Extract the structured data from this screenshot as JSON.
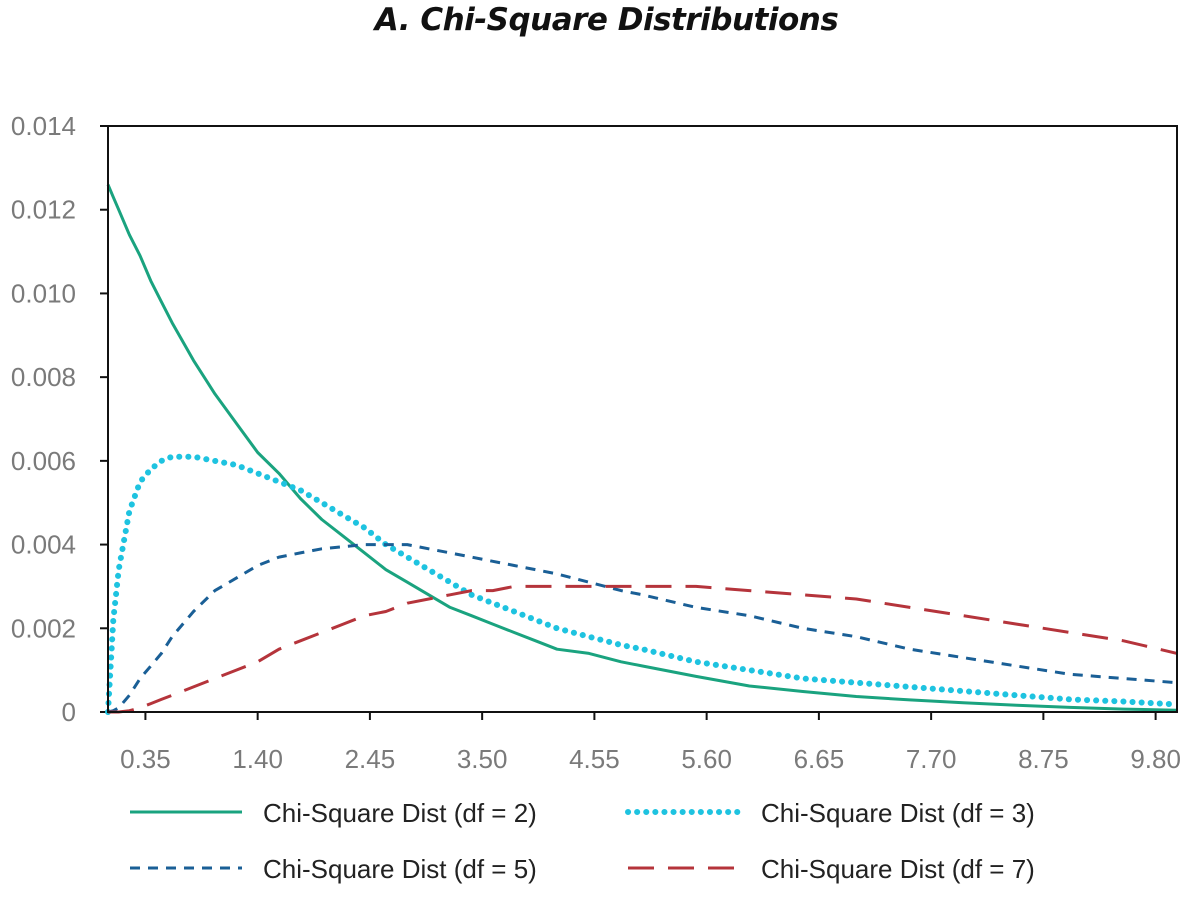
{
  "chart_data": {
    "type": "line",
    "title": "A. Chi-Square Distributions",
    "xlabel": "",
    "ylabel": "",
    "xlim": [
      0.0,
      10.0
    ],
    "ylim": [
      0,
      0.014
    ],
    "x_ticks": [
      "0.35",
      "1.40",
      "2.45",
      "3.50",
      "4.55",
      "5.60",
      "6.65",
      "7.70",
      "8.75",
      "9.80"
    ],
    "y_ticks": [
      "0",
      "0.002",
      "0.004",
      "0.006",
      "0.008",
      "0.010",
      "0.012",
      "0.014"
    ],
    "grid": false,
    "legend_position": "bottom",
    "x": [
      0.0,
      0.05,
      0.1,
      0.2,
      0.3,
      0.4,
      0.5,
      0.6,
      0.8,
      1.0,
      1.2,
      1.4,
      1.6,
      1.8,
      2.0,
      2.2,
      2.4,
      2.6,
      2.8,
      3.0,
      3.2,
      3.4,
      3.6,
      3.8,
      4.0,
      4.2,
      4.5,
      4.8,
      5.0,
      5.5,
      6.0,
      6.5,
      7.0,
      7.5,
      8.0,
      8.5,
      9.0,
      9.5,
      10.0
    ],
    "series": [
      {
        "name": "Chi-Square Dist (df = 2)",
        "color": "#1aa37f",
        "style": "solid",
        "values": [
          0.0126,
          0.0123,
          0.012,
          0.0114,
          0.0109,
          0.0103,
          0.0098,
          0.0093,
          0.0084,
          0.0076,
          0.0069,
          0.0062,
          0.0057,
          0.0051,
          0.0046,
          0.0042,
          0.0038,
          0.0034,
          0.0031,
          0.0028,
          0.0025,
          0.0023,
          0.0021,
          0.0019,
          0.0017,
          0.0015,
          0.0014,
          0.0012,
          0.0011,
          0.00085,
          0.00062,
          0.00049,
          0.00037,
          0.00029,
          0.00022,
          0.00016,
          0.00011,
          7e-05,
          4e-05
        ]
      },
      {
        "name": "Chi-Square Dist (df = 3)",
        "color": "#1ec3e0",
        "style": "dotted",
        "values": [
          0.0,
          0.0022,
          0.0034,
          0.0048,
          0.0055,
          0.0058,
          0.006,
          0.0061,
          0.0061,
          0.006,
          0.0059,
          0.0057,
          0.0055,
          0.0053,
          0.005,
          0.0047,
          0.0044,
          0.004,
          0.0037,
          0.0034,
          0.0031,
          0.0028,
          0.0026,
          0.0024,
          0.0022,
          0.002,
          0.0018,
          0.0016,
          0.0015,
          0.0012,
          0.001,
          0.0008,
          0.0007,
          0.0006,
          0.0005,
          0.0004,
          0.0003,
          0.00025,
          0.00018
        ]
      },
      {
        "name": "Chi-Square Dist (df = 5)",
        "color": "#1a5f96",
        "style": "dashed",
        "values": [
          0.0,
          3e-05,
          0.0001,
          0.0004,
          0.0008,
          0.0011,
          0.0014,
          0.0018,
          0.0024,
          0.0029,
          0.0032,
          0.0035,
          0.0037,
          0.0038,
          0.0039,
          0.00395,
          0.004,
          0.004,
          0.004,
          0.0039,
          0.0038,
          0.0037,
          0.0036,
          0.0035,
          0.0034,
          0.0033,
          0.0031,
          0.0029,
          0.0028,
          0.0025,
          0.0023,
          0.002,
          0.0018,
          0.0015,
          0.0013,
          0.0011,
          0.0009,
          0.0008,
          0.0007
        ]
      },
      {
        "name": "Chi-Square Dist (df = 7)",
        "color": "#b5343b",
        "style": "longdash",
        "values": [
          0.0,
          0.0,
          0.0,
          3e-05,
          0.0001,
          0.0002,
          0.0003,
          0.0004,
          0.0006,
          0.0008,
          0.001,
          0.0012,
          0.0015,
          0.0017,
          0.0019,
          0.0021,
          0.0023,
          0.0024,
          0.0026,
          0.0027,
          0.0028,
          0.0029,
          0.0029,
          0.003,
          0.003,
          0.003,
          0.003,
          0.003,
          0.003,
          0.003,
          0.0029,
          0.0028,
          0.0027,
          0.0025,
          0.0023,
          0.0021,
          0.0019,
          0.0017,
          0.0014
        ]
      }
    ]
  }
}
